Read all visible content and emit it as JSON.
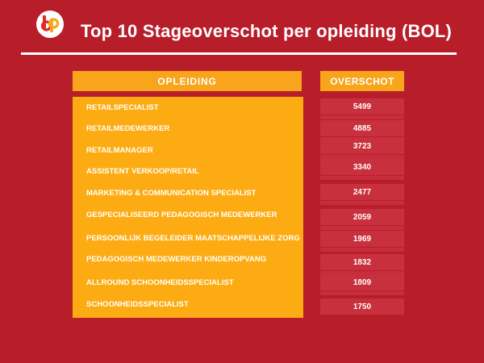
{
  "header": {
    "title": "Top 10 Stageoverschot per opleiding (BOL)"
  },
  "colors": {
    "background": "#b81d2a",
    "accent": "#f8a51b",
    "value_cell": "#c9303d"
  },
  "table": {
    "col_opleiding": "OPLEIDING",
    "col_overschot": "OVERSCHOT",
    "rows": [
      {
        "opleiding": "RETAILSPECIALIST",
        "overschot": "5499"
      },
      {
        "opleiding": "RETAILMEDEWERKER",
        "overschot": "4885"
      },
      {
        "opleiding": "RETAILMANAGER",
        "overschot": "3723"
      },
      {
        "opleiding": "ASSISTENT VERKOOP/RETAIL",
        "overschot": "3340"
      },
      {
        "opleiding": "MARKETING & COMMUNICATION SPECIALIST",
        "overschot": "2477"
      },
      {
        "opleiding": "GESPECIALISEERD PEDAGOGISCH MEDEWERKER",
        "overschot": "2059"
      },
      {
        "opleiding": "PERSOONLIJK BEGELEIDER MAATSCHAPPELIJKE ZORG",
        "overschot": "1969"
      },
      {
        "opleiding": "PEDAGOGISCH MEDEWERKER KINDEROPVANG",
        "overschot": "1832"
      },
      {
        "opleiding": "ALLROUND SCHOONHEIDSSPECIALIST",
        "overschot": "1809"
      },
      {
        "opleiding": "SCHOONHEIDSSPECIALIST",
        "overschot": "1750"
      }
    ]
  }
}
